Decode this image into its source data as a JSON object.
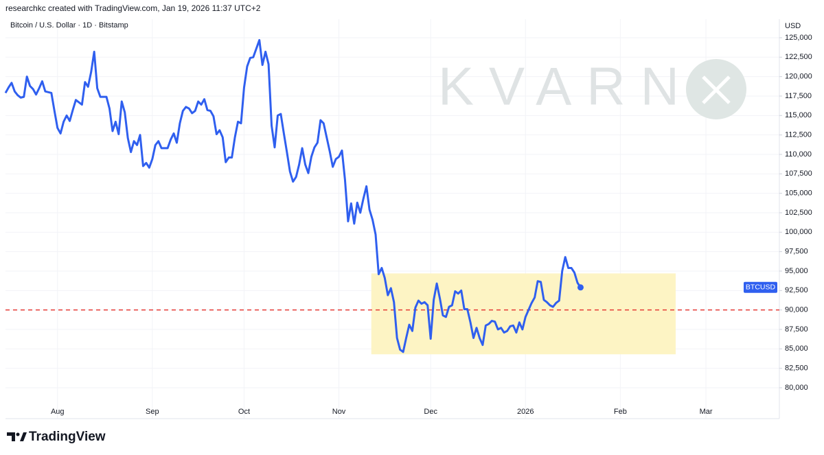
{
  "header": "researchkc created with TradingView.com, Jan 19, 2026 11:37 UTC+2",
  "footer": "TradingView",
  "chart_data": {
    "type": "line",
    "title": "Bitcoin / U.S. Dollar · 1D · Bitstamp",
    "y_axis_label": "USD",
    "watermark": "KVARN",
    "grid": true,
    "categories": [
      null,
      null,
      null,
      null,
      null,
      null,
      null,
      null,
      null,
      null,
      null,
      null,
      null,
      null,
      null,
      null,
      null,
      "Aug",
      null,
      null,
      null,
      null,
      null,
      null,
      null,
      null,
      null,
      null,
      null,
      null,
      null,
      null,
      null,
      null,
      null,
      null,
      null,
      null,
      null,
      null,
      null,
      null,
      null,
      null,
      null,
      null,
      null,
      null,
      "Sep",
      null,
      null,
      null,
      null,
      null,
      null,
      null,
      null,
      null,
      null,
      null,
      null,
      null,
      null,
      null,
      null,
      null,
      null,
      null,
      null,
      null,
      null,
      null,
      null,
      null,
      null,
      null,
      null,
      null,
      "Oct",
      null,
      null,
      null,
      null,
      null,
      null,
      null,
      null,
      null,
      null,
      null,
      null,
      null,
      null,
      null,
      null,
      null,
      null,
      null,
      null,
      null,
      null,
      null,
      null,
      null,
      null,
      null,
      null,
      null,
      null,
      "Nov",
      null,
      null,
      null,
      null,
      null,
      null,
      null,
      null,
      null,
      null,
      null,
      null,
      null,
      null,
      null,
      null,
      null,
      null,
      null,
      null,
      null,
      null,
      null,
      null,
      null,
      null,
      null,
      null,
      null,
      "Dec",
      null,
      null,
      null,
      null,
      null,
      null,
      null,
      null,
      null,
      null,
      null,
      null,
      null,
      null,
      null,
      null,
      null,
      null,
      null,
      null,
      null,
      null,
      null,
      null,
      null,
      null,
      null,
      null,
      null,
      null,
      "2026",
      null,
      null,
      null,
      null,
      null,
      null,
      null,
      null,
      null,
      null,
      null,
      null,
      null,
      null,
      null,
      null,
      null,
      null,
      null,
      null,
      null,
      null,
      null,
      null,
      null,
      null,
      null,
      null,
      null,
      null,
      "Feb",
      null,
      null,
      null,
      null,
      null,
      null,
      null,
      null,
      null,
      null,
      null,
      null,
      null,
      null,
      null,
      null,
      null,
      null,
      null,
      null,
      null,
      null,
      null,
      null,
      null,
      null,
      null,
      "Mar",
      null,
      null,
      null,
      null,
      null,
      null,
      null,
      null,
      null,
      null,
      null,
      null,
      null,
      null,
      null,
      null,
      null,
      null,
      null,
      null,
      null,
      null,
      null,
      null
    ],
    "series": [
      {
        "name": "BTCUSD",
        "color": "#2f5fef",
        "values": [
          117900,
          118600,
          119200,
          118100,
          117600,
          117300,
          117400,
          120000,
          118800,
          118400,
          117700,
          118500,
          119400,
          118100,
          118000,
          117900,
          115600,
          113400,
          112700,
          114200,
          115000,
          114300,
          115700,
          117000,
          116700,
          116400,
          119300,
          118700,
          120600,
          123200,
          118500,
          117400,
          117400,
          117400,
          115900,
          113000,
          114200,
          112600,
          116800,
          115400,
          112100,
          110300,
          111700,
          111200,
          112500,
          108500,
          108900,
          108300,
          109400,
          111200,
          111700,
          110800,
          110800,
          110800,
          111900,
          112700,
          111500,
          114000,
          115600,
          116100,
          115900,
          115300,
          115600,
          116800,
          116400,
          117100,
          115700,
          115600,
          114900,
          112600,
          113100,
          112200,
          109000,
          109600,
          109600,
          112200,
          114200,
          114000,
          118600,
          121300,
          122400,
          122500,
          123600,
          124700,
          121500,
          123200,
          121600,
          113700,
          110900,
          115000,
          115200,
          112700,
          110300,
          107800,
          106500,
          107100,
          108700,
          110800,
          108700,
          107600,
          109700,
          110900,
          111500,
          114400,
          114000,
          112200,
          110400,
          108400,
          109400,
          109700,
          110500,
          106700,
          101400,
          103700,
          101100,
          103800,
          102500,
          104300,
          105900,
          102900,
          101600,
          99700,
          94600,
          95400,
          94100,
          91900,
          92800,
          91000,
          86400,
          84900,
          84600,
          86400,
          88100,
          87300,
          90300,
          91200,
          90800,
          91000,
          90600,
          86300,
          91300,
          93400,
          91500,
          89300,
          89100,
          90400,
          90600,
          92400,
          92100,
          92500,
          90100,
          90100,
          88400,
          86400,
          87700,
          86400,
          85500,
          88000,
          88200,
          88600,
          88500,
          87500,
          87700,
          87100,
          87300,
          87900,
          88000,
          87100,
          88400,
          87500,
          89100,
          90000,
          90900,
          91600,
          93700,
          93600,
          91300,
          91000,
          90600,
          90400,
          90900,
          91200,
          95000,
          96800,
          95400,
          95400,
          94800,
          93500,
          92900,
          null,
          null,
          null,
          null,
          null,
          null,
          null,
          null,
          null,
          null,
          null,
          null,
          null,
          null,
          null,
          null,
          null,
          null,
          null,
          null,
          null,
          null,
          null,
          null,
          null,
          null,
          null,
          null,
          null,
          null,
          null,
          null,
          null,
          null,
          null,
          null,
          null,
          null,
          null,
          null,
          null,
          null,
          null,
          null,
          null,
          null,
          null,
          null,
          null,
          null,
          null,
          null,
          null,
          null,
          null,
          null,
          null,
          null,
          null,
          null,
          null,
          null,
          null,
          null,
          null
        ]
      }
    ],
    "ylim": [
      76030,
      127380
    ],
    "yticks": [
      {
        "value": 80000,
        "label": "80,000"
      },
      {
        "value": 82500,
        "label": "82,500"
      },
      {
        "value": 85000,
        "label": "85,000"
      },
      {
        "value": 87500,
        "label": "87,500"
      },
      {
        "value": 90000,
        "label": "90,000"
      },
      {
        "value": 92500,
        "label": "92,500"
      },
      {
        "value": 95000,
        "label": "95,000"
      },
      {
        "value": 97500,
        "label": "97,500"
      },
      {
        "value": 100000,
        "label": "100,000"
      },
      {
        "value": 102500,
        "label": "102,500"
      },
      {
        "value": 105000,
        "label": "105,000"
      },
      {
        "value": 107500,
        "label": "107,500"
      },
      {
        "value": 110000,
        "label": "110,000"
      },
      {
        "value": 112500,
        "label": "112,500"
      },
      {
        "value": 115000,
        "label": "115,000"
      },
      {
        "value": 117500,
        "label": "117,500"
      },
      {
        "value": 120000,
        "label": "120,000"
      },
      {
        "value": 122500,
        "label": "122,500"
      },
      {
        "value": 125000,
        "label": "125,000"
      }
    ],
    "hline": {
      "value": 90000,
      "color": "#e53935"
    },
    "zone": {
      "x": [
        119.6,
        219.1
      ],
      "y": [
        84300,
        94700
      ],
      "color": "#fdf4c4"
    }
  }
}
